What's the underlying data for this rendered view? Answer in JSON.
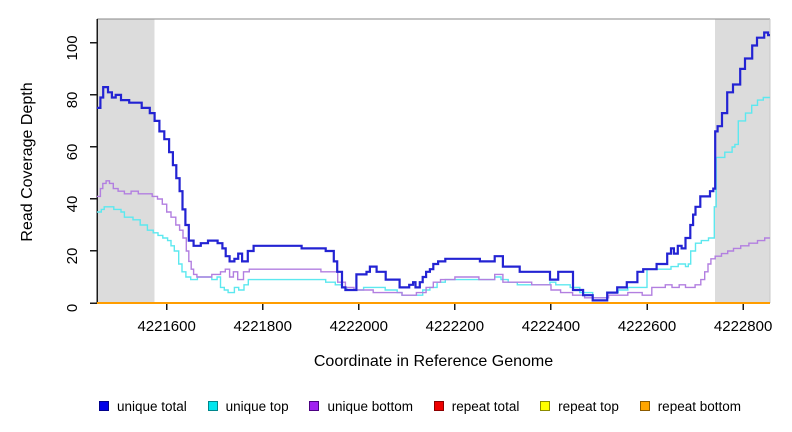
{
  "chart_data": {
    "type": "line",
    "step": true,
    "title": "",
    "xlabel": "Coordinate in Reference Genome",
    "ylabel": "Read Coverage Depth",
    "xlim": [
      4221455,
      4222856
    ],
    "ylim": [
      0,
      109.2
    ],
    "xticks": [
      4221600,
      4221800,
      4222000,
      4222200,
      4222400,
      4222600,
      4222800
    ],
    "yticks": [
      0,
      20,
      40,
      60,
      80,
      100
    ],
    "grid": false,
    "legend_position": "bottom",
    "axis_color": "#1a1a1a",
    "box_top_color": "#8a8a8a",
    "box_right_color": "#c8c8c8",
    "shaded_regions": [
      {
        "x0": 4221455,
        "x1": 4221575,
        "color": "#dcdcdc"
      },
      {
        "x0": 4222742,
        "x1": 4222856,
        "color": "#dcdcdc"
      }
    ],
    "series": [
      {
        "name": "unique total",
        "color": "#2323d3",
        "swatch": "#0000e8",
        "swatch_border": "#00008b",
        "width": 2.2,
        "points": [
          [
            4221455,
            75
          ],
          [
            4221462,
            79
          ],
          [
            4221468,
            83
          ],
          [
            4221478,
            81
          ],
          [
            4221486,
            79
          ],
          [
            4221494,
            80
          ],
          [
            4221505,
            78
          ],
          [
            4221522,
            77
          ],
          [
            4221548,
            75
          ],
          [
            4221565,
            73
          ],
          [
            4221575,
            70
          ],
          [
            4221585,
            66
          ],
          [
            4221595,
            63
          ],
          [
            4221605,
            58
          ],
          [
            4221613,
            53
          ],
          [
            4221620,
            48
          ],
          [
            4221627,
            43
          ],
          [
            4221633,
            36
          ],
          [
            4221639,
            30
          ],
          [
            4221646,
            24
          ],
          [
            4221656,
            22
          ],
          [
            4221671,
            23
          ],
          [
            4221686,
            24
          ],
          [
            4221706,
            23
          ],
          [
            4221716,
            21
          ],
          [
            4221723,
            18
          ],
          [
            4221731,
            16
          ],
          [
            4221741,
            17
          ],
          [
            4221749,
            19
          ],
          [
            4221757,
            16
          ],
          [
            4221769,
            20
          ],
          [
            4221781,
            22
          ],
          [
            4221842,
            22
          ],
          [
            4221881,
            21
          ],
          [
            4221931,
            20
          ],
          [
            4221948,
            16
          ],
          [
            4221955,
            12
          ],
          [
            4221965,
            6
          ],
          [
            4221972,
            5
          ],
          [
            4221995,
            11
          ],
          [
            4222016,
            12
          ],
          [
            4222023,
            14
          ],
          [
            4222037,
            12
          ],
          [
            4222056,
            9
          ],
          [
            4222085,
            6
          ],
          [
            4222105,
            7
          ],
          [
            4222113,
            8
          ],
          [
            4222118,
            6
          ],
          [
            4222127,
            8
          ],
          [
            4222133,
            10
          ],
          [
            4222140,
            12
          ],
          [
            4222148,
            13
          ],
          [
            4222155,
            15
          ],
          [
            4222165,
            16
          ],
          [
            4222180,
            17
          ],
          [
            4222252,
            16
          ],
          [
            4222283,
            18
          ],
          [
            4222300,
            14
          ],
          [
            4222335,
            12
          ],
          [
            4222398,
            9
          ],
          [
            4222415,
            12
          ],
          [
            4222446,
            5
          ],
          [
            4222467,
            3
          ],
          [
            4222487,
            1
          ],
          [
            4222517,
            4
          ],
          [
            4222538,
            6
          ],
          [
            4222558,
            8
          ],
          [
            4222580,
            12
          ],
          [
            4222592,
            13
          ],
          [
            4222620,
            15
          ],
          [
            4222642,
            19
          ],
          [
            4222650,
            21
          ],
          [
            4222656,
            19
          ],
          [
            4222664,
            22
          ],
          [
            4222672,
            21
          ],
          [
            4222680,
            25
          ],
          [
            4222690,
            30
          ],
          [
            4222696,
            34
          ],
          [
            4222701,
            37
          ],
          [
            4222711,
            41
          ],
          [
            4222731,
            43
          ],
          [
            4222738,
            44
          ],
          [
            4222742,
            66
          ],
          [
            4222747,
            68
          ],
          [
            4222756,
            73
          ],
          [
            4222767,
            81
          ],
          [
            4222779,
            84
          ],
          [
            4222794,
            90
          ],
          [
            4222804,
            94
          ],
          [
            4222819,
            99
          ],
          [
            4222829,
            102
          ],
          [
            4222844,
            104
          ],
          [
            4222852,
            103
          ],
          [
            4222856,
            103
          ]
        ]
      },
      {
        "name": "unique top",
        "color": "#5ce8ef",
        "swatch": "#00e5ee",
        "swatch_border": "#00868b",
        "width": 1.4,
        "points": [
          [
            4221455,
            35
          ],
          [
            4221464,
            36
          ],
          [
            4221470,
            37
          ],
          [
            4221490,
            36
          ],
          [
            4221505,
            35
          ],
          [
            4221512,
            33
          ],
          [
            4221530,
            32
          ],
          [
            4221545,
            30
          ],
          [
            4221560,
            28
          ],
          [
            4221572,
            27
          ],
          [
            4221582,
            26
          ],
          [
            4221592,
            25
          ],
          [
            4221602,
            24
          ],
          [
            4221609,
            22
          ],
          [
            4221616,
            20
          ],
          [
            4221625,
            15
          ],
          [
            4221632,
            12
          ],
          [
            4221640,
            10
          ],
          [
            4221650,
            9
          ],
          [
            4221664,
            10
          ],
          [
            4221694,
            9
          ],
          [
            4221705,
            10
          ],
          [
            4221712,
            6
          ],
          [
            4221720,
            5
          ],
          [
            4221728,
            4
          ],
          [
            4221741,
            6
          ],
          [
            4221750,
            5
          ],
          [
            4221761,
            7
          ],
          [
            4221770,
            9
          ],
          [
            4221900,
            9
          ],
          [
            4221931,
            8
          ],
          [
            4221951,
            7
          ],
          [
            4221965,
            6
          ],
          [
            4221975,
            5
          ],
          [
            4222010,
            6
          ],
          [
            4222055,
            5
          ],
          [
            4222080,
            4
          ],
          [
            4222090,
            3
          ],
          [
            4222133,
            5
          ],
          [
            4222148,
            6
          ],
          [
            4222163,
            8
          ],
          [
            4222180,
            9
          ],
          [
            4222240,
            9
          ],
          [
            4222283,
            10
          ],
          [
            4222296,
            9
          ],
          [
            4222311,
            8
          ],
          [
            4222330,
            7
          ],
          [
            4222398,
            8
          ],
          [
            4222410,
            7
          ],
          [
            4222440,
            6
          ],
          [
            4222460,
            4
          ],
          [
            4222487,
            2
          ],
          [
            4222517,
            4
          ],
          [
            4222540,
            5
          ],
          [
            4222560,
            6
          ],
          [
            4222600,
            13
          ],
          [
            4222650,
            14
          ],
          [
            4222665,
            15
          ],
          [
            4222680,
            14
          ],
          [
            4222686,
            15
          ],
          [
            4222691,
            20
          ],
          [
            4222701,
            23
          ],
          [
            4222713,
            24
          ],
          [
            4222728,
            25
          ],
          [
            4222740,
            37
          ],
          [
            4222744,
            56
          ],
          [
            4222762,
            58
          ],
          [
            4222777,
            60
          ],
          [
            4222783,
            61
          ],
          [
            4222790,
            70
          ],
          [
            4222805,
            73
          ],
          [
            4222818,
            76
          ],
          [
            4222830,
            78
          ],
          [
            4222842,
            79
          ],
          [
            4222856,
            79
          ]
        ]
      },
      {
        "name": "unique bottom",
        "color": "#b27fe0",
        "swatch": "#a020f0",
        "swatch_border": "#4b0082",
        "width": 1.4,
        "points": [
          [
            4221455,
            41
          ],
          [
            4221462,
            44
          ],
          [
            4221467,
            46
          ],
          [
            4221474,
            47
          ],
          [
            4221481,
            46
          ],
          [
            4221489,
            44
          ],
          [
            4221499,
            43
          ],
          [
            4221512,
            42
          ],
          [
            4221526,
            43
          ],
          [
            4221541,
            42
          ],
          [
            4221570,
            41
          ],
          [
            4221581,
            40
          ],
          [
            4221591,
            38
          ],
          [
            4221600,
            35
          ],
          [
            4221609,
            33
          ],
          [
            4221619,
            30
          ],
          [
            4221627,
            28
          ],
          [
            4221634,
            25
          ],
          [
            4221641,
            20
          ],
          [
            4221646,
            16
          ],
          [
            4221651,
            13
          ],
          [
            4221656,
            11
          ],
          [
            4221663,
            10
          ],
          [
            4221694,
            11
          ],
          [
            4221712,
            12
          ],
          [
            4221722,
            13
          ],
          [
            4221731,
            10
          ],
          [
            4221739,
            12
          ],
          [
            4221748,
            9
          ],
          [
            4221760,
            12
          ],
          [
            4221772,
            13
          ],
          [
            4221862,
            13
          ],
          [
            4221921,
            12
          ],
          [
            4221956,
            8
          ],
          [
            4221972,
            6
          ],
          [
            4221990,
            5
          ],
          [
            4222030,
            4
          ],
          [
            4222090,
            3
          ],
          [
            4222120,
            4
          ],
          [
            4222140,
            6
          ],
          [
            4222155,
            8
          ],
          [
            4222170,
            9
          ],
          [
            4222200,
            10
          ],
          [
            4222250,
            9
          ],
          [
            4222283,
            11
          ],
          [
            4222300,
            8
          ],
          [
            4222360,
            7
          ],
          [
            4222400,
            5
          ],
          [
            4222420,
            4
          ],
          [
            4222445,
            3
          ],
          [
            4222470,
            2
          ],
          [
            4222520,
            3
          ],
          [
            4222560,
            4
          ],
          [
            4222590,
            3
          ],
          [
            4222610,
            6
          ],
          [
            4222638,
            7
          ],
          [
            4222652,
            6
          ],
          [
            4222667,
            7
          ],
          [
            4222680,
            6
          ],
          [
            4222700,
            7
          ],
          [
            4222712,
            9
          ],
          [
            4222720,
            12
          ],
          [
            4222727,
            15
          ],
          [
            4222733,
            17
          ],
          [
            4222742,
            18
          ],
          [
            4222755,
            19
          ],
          [
            4222768,
            20
          ],
          [
            4222780,
            21
          ],
          [
            4222795,
            22
          ],
          [
            4222812,
            23
          ],
          [
            4222830,
            24
          ],
          [
            4222845,
            25
          ],
          [
            4222856,
            25
          ]
        ]
      },
      {
        "name": "repeat total",
        "color": "#ee0000",
        "swatch": "#ee0000",
        "swatch_border": "#8b0000",
        "width": 1.4,
        "points": [
          [
            4221455,
            0
          ],
          [
            4222856,
            0
          ]
        ]
      },
      {
        "name": "repeat top",
        "color": "#ffff00",
        "swatch": "#ffff00",
        "swatch_border": "#8b8b00",
        "width": 1.4,
        "points": [
          [
            4221455,
            0
          ],
          [
            4222856,
            0
          ]
        ]
      },
      {
        "name": "repeat bottom",
        "color": "#ff9d00",
        "swatch": "#ffa500",
        "swatch_border": "#8b5a00",
        "width": 2,
        "points": [
          [
            4221455,
            0
          ],
          [
            4222856,
            0
          ]
        ]
      }
    ]
  }
}
